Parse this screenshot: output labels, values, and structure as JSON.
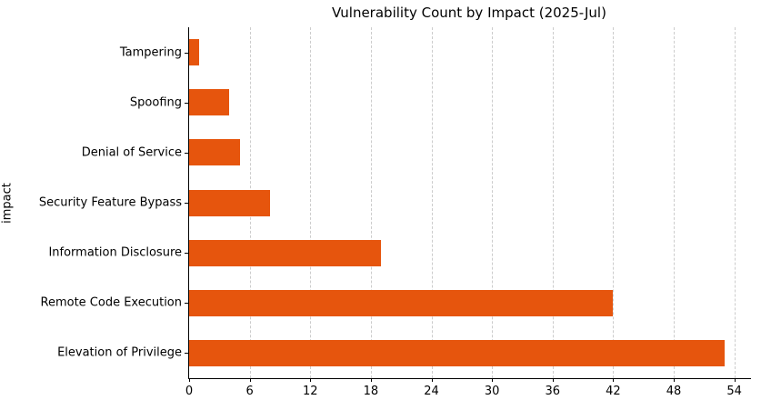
{
  "chart_data": {
    "type": "bar",
    "orientation": "horizontal",
    "title": "Vulnerability Count by Impact (2025-Jul)",
    "xlabel": "",
    "ylabel": "impact",
    "categories": [
      "Tampering",
      "Spoofing",
      "Denial of Service",
      "Security Feature Bypass",
      "Information Disclosure",
      "Remote Code Execution",
      "Elevation of Privilege"
    ],
    "categories_order": "top-to-bottom",
    "values": [
      1,
      4,
      5,
      8,
      19,
      42,
      53
    ],
    "xticks": [
      0,
      6,
      12,
      18,
      24,
      30,
      36,
      42,
      48,
      54
    ],
    "xlim": [
      0,
      55.65
    ],
    "bar_color": "#e6550d",
    "grid": "vertical-dashed",
    "grid_color": "#cccccc",
    "legend": "none"
  }
}
